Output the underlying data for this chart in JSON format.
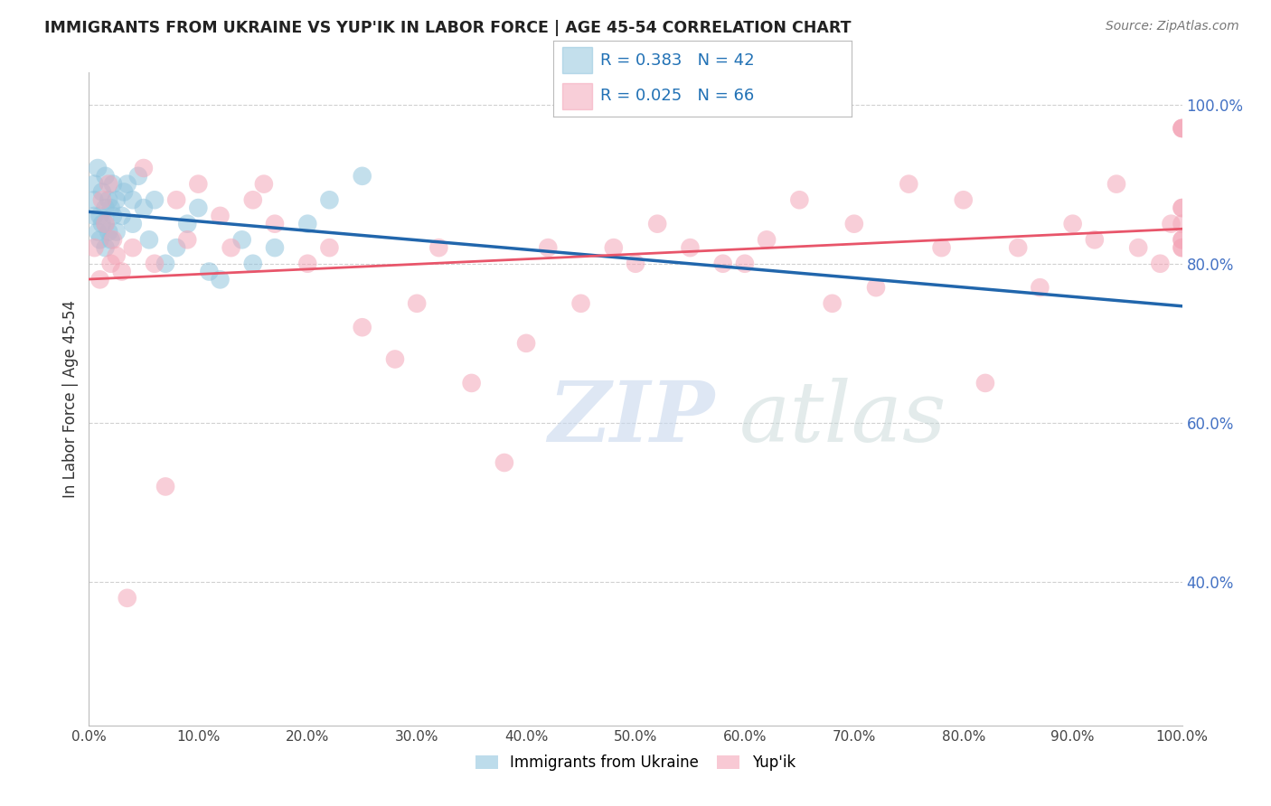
{
  "title": "IMMIGRANTS FROM UKRAINE VS YUP'IK IN LABOR FORCE | AGE 45-54 CORRELATION CHART",
  "source": "Source: ZipAtlas.com",
  "ylabel": "In Labor Force | Age 45-54",
  "legend_ukraine": "Immigrants from Ukraine",
  "legend_yupik": "Yup'ik",
  "r_ukraine": 0.383,
  "n_ukraine": 42,
  "r_yupik": 0.025,
  "n_yupik": 66,
  "ukraine_color": "#92c5de",
  "yupik_color": "#f4a6b8",
  "ukraine_line_color": "#2166ac",
  "yupik_line_color": "#e8556a",
  "ukraine_x": [
    0.005,
    0.005,
    0.005,
    0.008,
    0.008,
    0.01,
    0.01,
    0.012,
    0.012,
    0.015,
    0.015,
    0.015,
    0.015,
    0.018,
    0.018,
    0.02,
    0.02,
    0.022,
    0.022,
    0.025,
    0.025,
    0.03,
    0.032,
    0.035,
    0.04,
    0.04,
    0.045,
    0.05,
    0.055,
    0.06,
    0.07,
    0.08,
    0.09,
    0.1,
    0.11,
    0.12,
    0.14,
    0.15,
    0.17,
    0.2,
    0.22,
    0.25
  ],
  "ukraine_y": [
    0.86,
    0.88,
    0.9,
    0.84,
    0.92,
    0.83,
    0.86,
    0.85,
    0.89,
    0.82,
    0.85,
    0.87,
    0.91,
    0.84,
    0.88,
    0.83,
    0.87,
    0.86,
    0.9,
    0.84,
    0.88,
    0.86,
    0.89,
    0.9,
    0.85,
    0.88,
    0.91,
    0.87,
    0.83,
    0.88,
    0.8,
    0.82,
    0.85,
    0.87,
    0.79,
    0.78,
    0.83,
    0.8,
    0.82,
    0.85,
    0.88,
    0.91
  ],
  "yupik_x": [
    0.005,
    0.01,
    0.012,
    0.015,
    0.018,
    0.02,
    0.022,
    0.025,
    0.03,
    0.035,
    0.04,
    0.05,
    0.06,
    0.07,
    0.08,
    0.09,
    0.1,
    0.12,
    0.13,
    0.15,
    0.16,
    0.17,
    0.2,
    0.22,
    0.25,
    0.28,
    0.3,
    0.32,
    0.35,
    0.38,
    0.4,
    0.42,
    0.45,
    0.48,
    0.5,
    0.52,
    0.55,
    0.58,
    0.6,
    0.62,
    0.65,
    0.68,
    0.7,
    0.72,
    0.75,
    0.78,
    0.8,
    0.82,
    0.85,
    0.87,
    0.9,
    0.92,
    0.94,
    0.96,
    0.98,
    0.99,
    1.0,
    1.0,
    1.0,
    1.0,
    1.0,
    1.0,
    1.0,
    1.0,
    1.0,
    1.0
  ],
  "yupik_y": [
    0.82,
    0.78,
    0.88,
    0.85,
    0.9,
    0.8,
    0.83,
    0.81,
    0.79,
    0.38,
    0.82,
    0.92,
    0.8,
    0.52,
    0.88,
    0.83,
    0.9,
    0.86,
    0.82,
    0.88,
    0.9,
    0.85,
    0.8,
    0.82,
    0.72,
    0.68,
    0.75,
    0.82,
    0.65,
    0.55,
    0.7,
    0.82,
    0.75,
    0.82,
    0.8,
    0.85,
    0.82,
    0.8,
    0.8,
    0.83,
    0.88,
    0.75,
    0.85,
    0.77,
    0.9,
    0.82,
    0.88,
    0.65,
    0.82,
    0.77,
    0.85,
    0.83,
    0.9,
    0.82,
    0.8,
    0.85,
    0.83,
    0.87,
    0.97,
    0.97,
    0.82,
    0.82,
    0.85,
    0.87,
    0.97,
    0.83
  ],
  "xlim": [
    0.0,
    1.0
  ],
  "ylim": [
    0.22,
    1.04
  ],
  "xticks": [
    0.0,
    0.1,
    0.2,
    0.3,
    0.4,
    0.5,
    0.6,
    0.7,
    0.8,
    0.9,
    1.0
  ],
  "yticks_right": [
    0.4,
    0.6,
    0.8,
    1.0
  ],
  "xticklabels": [
    "0.0%",
    "10.0%",
    "20.0%",
    "30.0%",
    "40.0%",
    "50.0%",
    "60.0%",
    "70.0%",
    "80.0%",
    "90.0%",
    "100.0%"
  ],
  "yticklabels_right": [
    "40.0%",
    "60.0%",
    "80.0%",
    "100.0%"
  ],
  "watermark_zip": "ZIP",
  "watermark_atlas": "atlas",
  "background_color": "#ffffff",
  "grid_color": "#d0d0d0"
}
